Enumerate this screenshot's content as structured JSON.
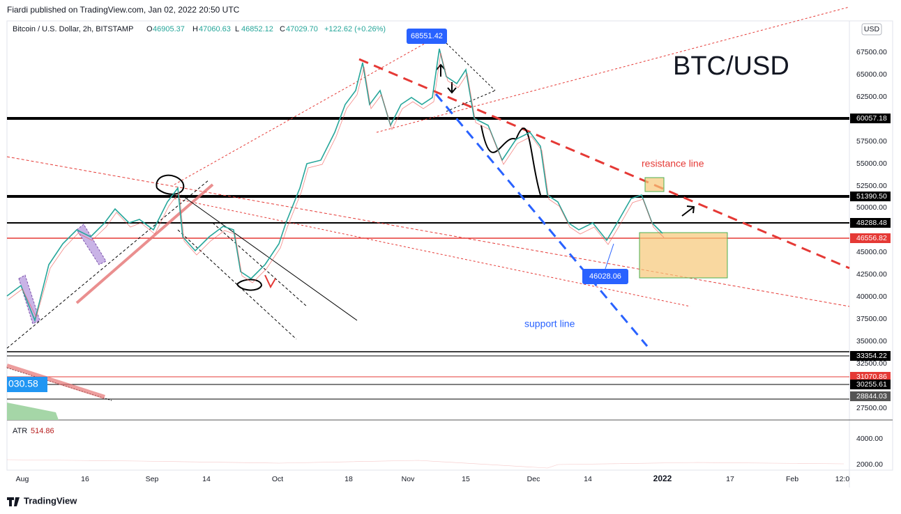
{
  "header": {
    "published": "Fiardi published on TradingView.com, Jan 02, 2022 20:50 UTC",
    "symbol": "Bitcoin / U.S. Dollar, 2h, BITSTAMP",
    "ohlc": [
      {
        "key": "O",
        "value": "46905.37"
      },
      {
        "key": "H",
        "value": "47060.63"
      },
      {
        "key": "L",
        "value": "46852.12"
      },
      {
        "key": "C",
        "value": "47029.70"
      }
    ],
    "change": "+122.62 (+0.26%)",
    "currency": "USD"
  },
  "price_axis": [
    "67500.00",
    "65000.00",
    "62500.00",
    "57500.00",
    "55000.00",
    "52500.00",
    "50000.00",
    "45000.00",
    "42500.00",
    "40000.00",
    "37500.00",
    "35000.00",
    "32500.00",
    "27500.00"
  ],
  "price_tags": [
    "60057.18",
    "51390.50",
    "48288.48",
    "46556.82",
    "33354.22",
    "31070.86",
    "30255.61",
    "28844.03"
  ],
  "atr": {
    "name": "ATR",
    "value": "514.86",
    "axis": [
      "4000.00",
      "2000.00"
    ]
  },
  "time_axis": [
    "Aug",
    "16",
    "Sep",
    "14",
    "Oct",
    "18",
    "Nov",
    "15",
    "Dec",
    "14",
    "2022",
    "17",
    "Feb",
    "12:0"
  ],
  "annotations": {
    "title": "BTC/USD",
    "resistance": "resistance line",
    "support": "support line",
    "high": "68551.42",
    "low": "46028.06",
    "left_tag": "030.58"
  },
  "footer": "TradingView"
}
